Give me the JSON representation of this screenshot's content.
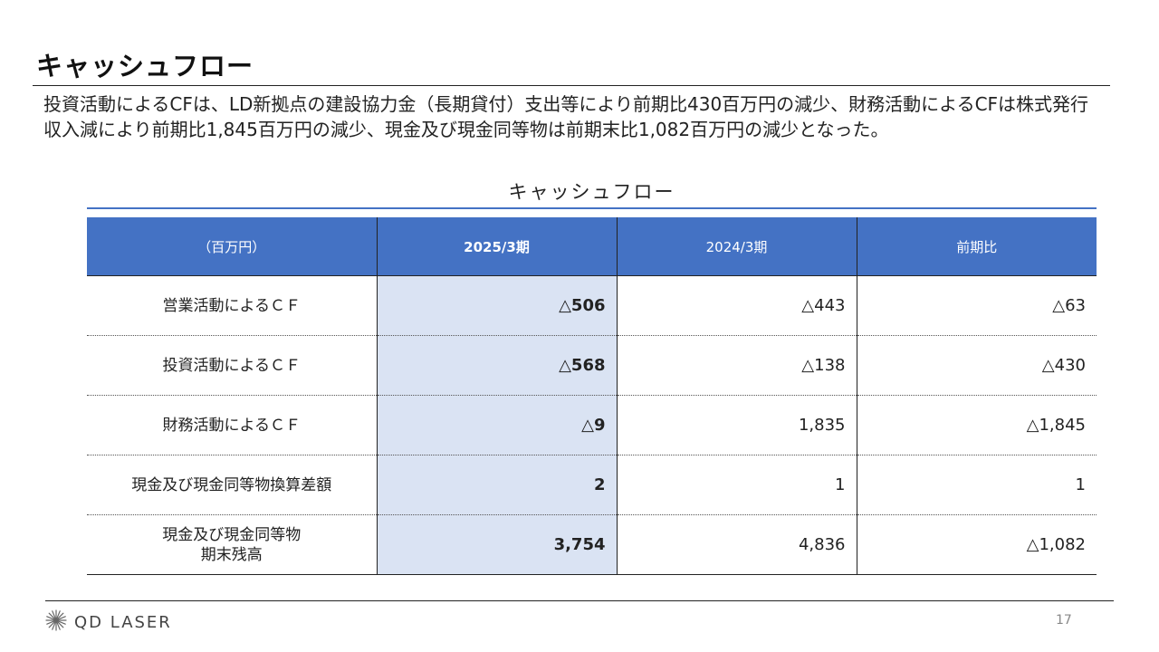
{
  "slide": {
    "title": "キャッシュフロー",
    "summary": "投資活動によるCFは、LD新拠点の建設協力金（長期貸付）支出等により前期比430百万円の減少、財務活動によるCFは株式発行収入減により前期比1,845百万円の減少、現金及び現金同等物は前期末比1,082百万円の減少となった。",
    "page_number": "17"
  },
  "table": {
    "caption": "キャッシュフロー",
    "headers": [
      "（百万円）",
      "2025/3期",
      "2024/3期",
      "前期比"
    ],
    "rows": [
      {
        "label": "営業活動によるＣＦ",
        "label_line2": "",
        "current": "△506",
        "previous": "△443",
        "change": "△63"
      },
      {
        "label": "投資活動によるＣＦ",
        "label_line2": "",
        "current": "△568",
        "previous": "△138",
        "change": "△430"
      },
      {
        "label": "財務活動によるＣＦ",
        "label_line2": "",
        "current": "△9",
        "previous": "1,835",
        "change": "△1,845"
      },
      {
        "label": "現金及び現金同等物換算差額",
        "label_line2": "",
        "current": "2",
        "previous": "1",
        "change": "1"
      },
      {
        "label": "現金及び現金同等物",
        "label_line2": "期末残高",
        "current": "3,754",
        "previous": "4,836",
        "change": "△1,082"
      }
    ]
  },
  "footer": {
    "logo_text": "QD LASER",
    "logo_icon": "starburst-icon"
  },
  "colors": {
    "header_fill": "#4472c4",
    "current_column_fill": "#dae3f3",
    "text": "#222222"
  }
}
